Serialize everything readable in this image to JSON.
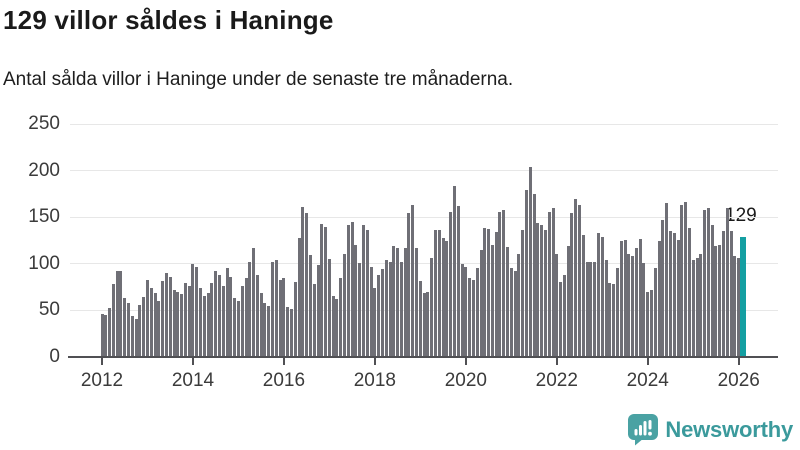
{
  "title": "129 villor såldes i Haninge",
  "subtitle": "Antal sålda villor i Haninge under de senaste tre månaderna.",
  "annotation": {
    "label": "129"
  },
  "logo": {
    "text": "Newsworthy",
    "icon": "bar-chart-speech-bubble-icon"
  },
  "colors": {
    "bar": "#6f6f76",
    "highlight": "#149fa2",
    "grid": "#e7e7e7",
    "axis": "#505054",
    "tick_text": "#3b3b3b",
    "title_text": "#1a1a1a",
    "logo_teal": "#3b9a9c",
    "logo_icon_teal": "#4aa2a3"
  },
  "chart_data": {
    "type": "bar",
    "title": "129 villor såldes i Haninge",
    "subtitle": "Antal sålda villor i Haninge under de senaste tre månaderna.",
    "xlabel": "",
    "ylabel": "",
    "x_start": "2012-01",
    "x_end": "2026-02",
    "frequency": "monthly",
    "ylim": [
      0,
      250
    ],
    "yticks": [
      0,
      50,
      100,
      150,
      200,
      250
    ],
    "xticks": [
      "2012",
      "2014",
      "2016",
      "2018",
      "2020",
      "2022",
      "2024",
      "2026"
    ],
    "grid": true,
    "legend": false,
    "highlight_index": 169,
    "highlight_value": 129,
    "values": [
      46,
      45,
      53,
      78,
      92,
      92,
      63,
      58,
      44,
      41,
      56,
      64,
      83,
      74,
      69,
      60,
      82,
      90,
      86,
      72,
      70,
      68,
      79,
      76,
      100,
      97,
      74,
      65,
      69,
      79,
      92,
      88,
      76,
      95,
      86,
      63,
      60,
      76,
      85,
      102,
      117,
      88,
      69,
      58,
      55,
      102,
      104,
      83,
      85,
      54,
      52,
      81,
      128,
      161,
      154,
      109,
      78,
      99,
      143,
      139,
      105,
      66,
      62,
      85,
      110,
      142,
      145,
      120,
      101,
      142,
      136,
      97,
      74,
      88,
      94,
      104,
      102,
      119,
      117,
      102,
      117,
      154,
      163,
      117,
      82,
      69,
      70,
      106,
      136,
      136,
      128,
      124,
      156,
      183,
      162,
      100,
      97,
      85,
      83,
      95,
      115,
      138,
      137,
      120,
      134,
      156,
      158,
      118,
      95,
      92,
      111,
      136,
      179,
      204,
      175,
      144,
      142,
      136,
      156,
      160,
      110,
      81,
      88,
      119,
      154,
      170,
      163,
      131,
      102,
      102,
      102,
      133,
      129,
      104,
      79,
      78,
      95,
      124,
      126,
      111,
      108,
      117,
      127,
      101,
      70,
      72,
      95,
      124,
      147,
      165,
      135,
      133,
      126,
      163,
      166,
      138,
      104,
      106,
      110,
      158,
      160,
      142,
      119,
      120,
      135,
      160,
      135,
      108,
      106,
      129
    ]
  }
}
